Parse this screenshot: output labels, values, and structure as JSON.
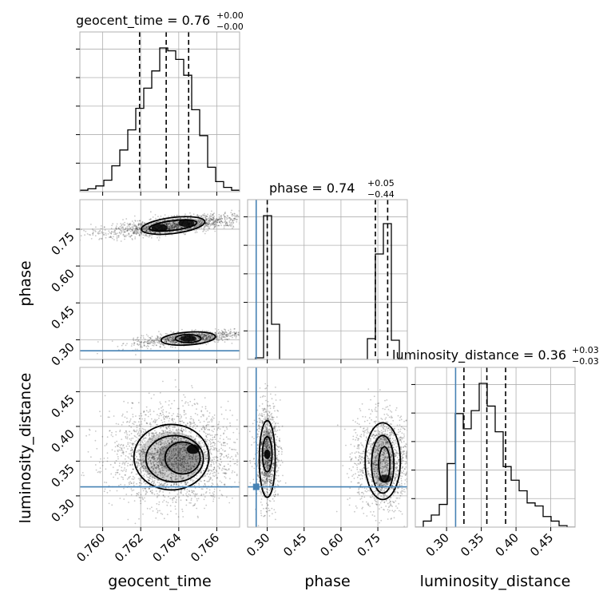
{
  "chart_data": {
    "type": "corner",
    "parameters": [
      "geocent_time",
      "phase",
      "luminosity_distance"
    ],
    "titles": {
      "geocent_time": {
        "label": "geocent_time = 0.76",
        "plus": "+0.00",
        "minus": "−0.00"
      },
      "phase": {
        "label": "phase = 0.74",
        "plus": "+0.05",
        "minus": "−0.44"
      },
      "luminosity_distance": {
        "label": "luminosity_distance = 0.36",
        "plus": "+0.03",
        "minus": "−0.03"
      }
    },
    "axes": {
      "geocent_time": {
        "range": [
          0.7588,
          0.7672
        ],
        "ticks": [
          0.76,
          0.762,
          0.764,
          0.766
        ],
        "tick_labels": [
          "0.760",
          "0.762",
          "0.764",
          "0.766"
        ]
      },
      "phase": {
        "range": [
          0.22,
          0.87
        ],
        "ticks": [
          0.3,
          0.45,
          0.6,
          0.75
        ],
        "tick_labels": [
          "0.30",
          "0.45",
          "0.60",
          "0.75"
        ]
      },
      "luminosity_distance": {
        "range": [
          0.255,
          0.485
        ],
        "ticks": [
          0.3,
          0.35,
          0.4,
          0.45
        ],
        "tick_labels": [
          "0.30",
          "0.35",
          "0.40",
          "0.45"
        ]
      }
    },
    "injection": {
      "phase": 0.255,
      "luminosity_distance": 0.313
    },
    "quantiles": {
      "geocent_time": [
        0.76194,
        0.76334,
        0.76452
      ],
      "phase": [
        0.3,
        0.74,
        0.79
      ],
      "luminosity_distance": [
        0.325,
        0.358,
        0.385
      ]
    },
    "histograms": {
      "geocent_time": {
        "edges": [
          0.7588,
          0.75922,
          0.75964,
          0.76006,
          0.76048,
          0.7609,
          0.76132,
          0.76174,
          0.76216,
          0.76258,
          0.763,
          0.76342,
          0.76384,
          0.76426,
          0.76468,
          0.7651,
          0.76552,
          0.76594,
          0.76636,
          0.76678,
          0.7672
        ],
        "counts": [
          1,
          2,
          4,
          8,
          18,
          29,
          43,
          58,
          72,
          84,
          100,
          98,
          92,
          81,
          57,
          39,
          17,
          7,
          3,
          1
        ]
      },
      "phase": {
        "edges": [
          0.22,
          0.2525,
          0.285,
          0.3175,
          0.35,
          0.3825,
          0.415,
          0.4475,
          0.48,
          0.5125,
          0.545,
          0.5775,
          0.61,
          0.6425,
          0.675,
          0.7075,
          0.74,
          0.7725,
          0.805,
          0.8375,
          0.87
        ],
        "counts": [
          0,
          1,
          90,
          22,
          0,
          0,
          0,
          0,
          0,
          0,
          0,
          0,
          0,
          0,
          0,
          13,
          66,
          85,
          12,
          0
        ]
      },
      "luminosity_distance": {
        "edges": [
          0.255,
          0.2665,
          0.278,
          0.2895,
          0.301,
          0.3125,
          0.324,
          0.3355,
          0.347,
          0.3585,
          0.37,
          0.3815,
          0.393,
          0.4045,
          0.416,
          0.4275,
          0.439,
          0.4505,
          0.462,
          0.4735,
          0.485
        ],
        "counts": [
          0,
          4,
          8,
          15,
          42,
          75,
          65,
          77,
          95,
          80,
          63,
          40,
          31,
          24,
          16,
          14,
          7,
          4,
          1,
          0
        ]
      }
    },
    "modes_2d": {
      "phase_vs_geocent_time": [
        {
          "x": 0.763,
          "y": 0.755
        },
        {
          "x": 0.7644,
          "y": 0.775
        },
        {
          "x": 0.7645,
          "y": 0.305
        }
      ],
      "luminosity_distance_vs_geocent_time": [
        {
          "x": 0.7637,
          "y": 0.358
        }
      ],
      "luminosity_distance_vs_phase": [
        {
          "x": 0.3,
          "y": 0.36
        },
        {
          "x": 0.77,
          "y": 0.35
        }
      ]
    }
  }
}
